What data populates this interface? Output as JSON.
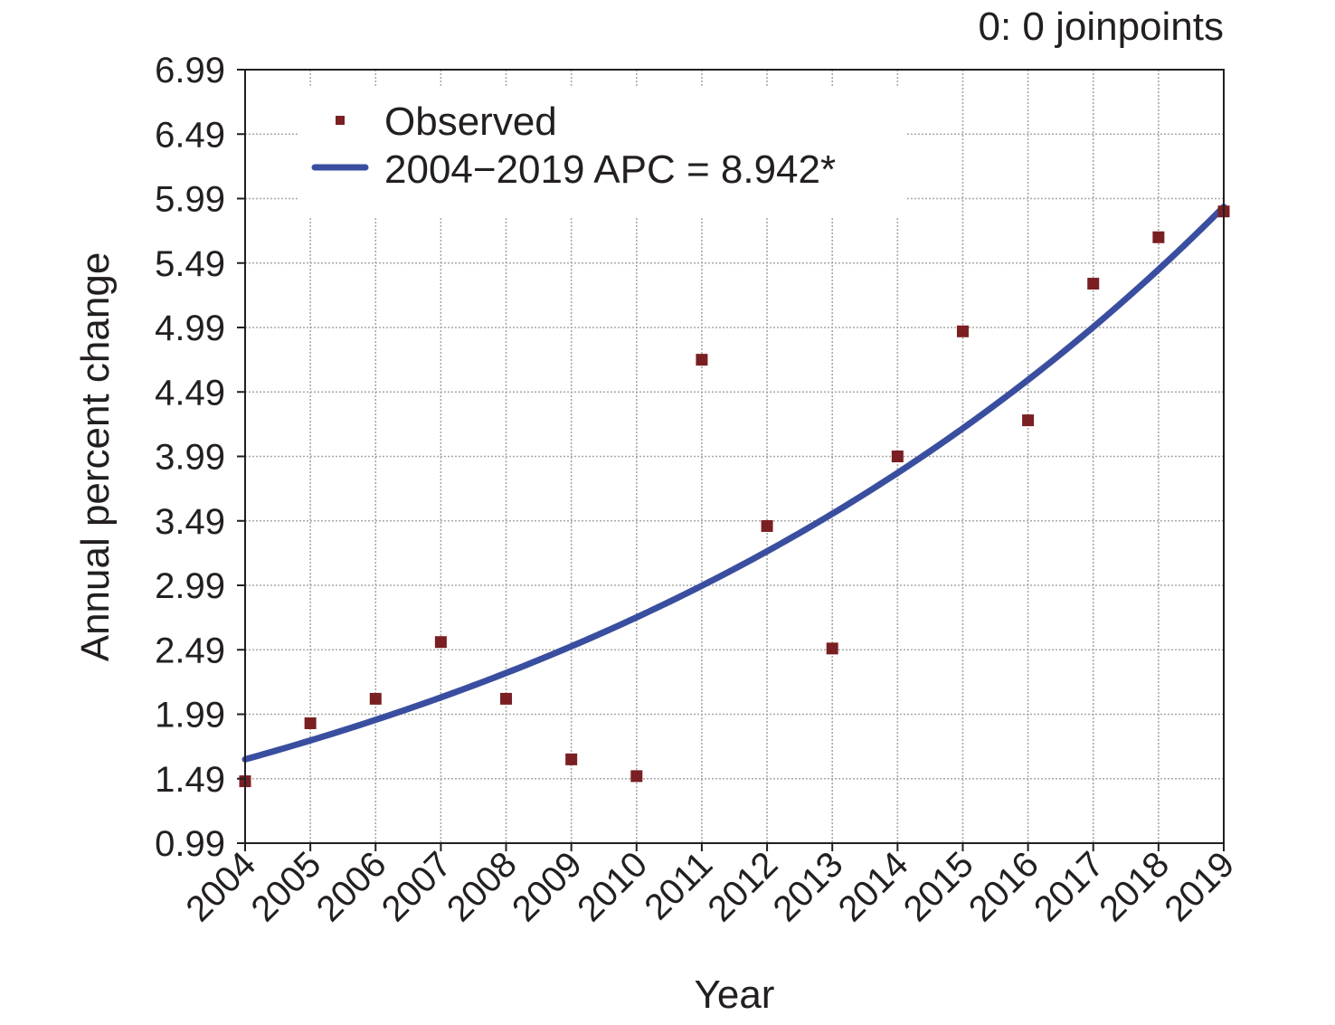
{
  "chart_data": {
    "type": "scatter",
    "subtitle": "0: 0 joinpoints",
    "xlabel": "Year",
    "ylabel": "Annual percent change",
    "x": [
      2004,
      2005,
      2006,
      2007,
      2008,
      2009,
      2010,
      2011,
      2012,
      2013,
      2014,
      2015,
      2016,
      2017,
      2018,
      2019
    ],
    "xlim": [
      2004,
      2019
    ],
    "ylim": [
      0.99,
      6.99
    ],
    "yticks": [
      "0.99",
      "1.49",
      "1.99",
      "2.49",
      "2.99",
      "3.49",
      "3.99",
      "4.49",
      "4.99",
      "5.49",
      "5.99",
      "6.49",
      "6.99"
    ],
    "xticks": [
      "2004",
      "2005",
      "2006",
      "2007",
      "2008",
      "2009",
      "2010",
      "2011",
      "2012",
      "2013",
      "2014",
      "2015",
      "2016",
      "2017",
      "2018",
      "2019"
    ],
    "grid": true,
    "legend_position": "top-left",
    "series": [
      {
        "name": "Observed",
        "kind": "points",
        "marker": "square",
        "color": "#7a1f22",
        "values": [
          1.47,
          1.92,
          2.11,
          2.55,
          2.11,
          1.64,
          1.51,
          4.74,
          3.45,
          2.5,
          3.99,
          4.96,
          4.27,
          5.33,
          5.69,
          5.89
        ]
      },
      {
        "name": "2004−2019 APC = 8.942*",
        "kind": "fit",
        "color": "#3a4ea0",
        "apc": 8.942,
        "start_value": 1.64,
        "values": [
          1.64,
          1.79,
          1.95,
          2.12,
          2.31,
          2.51,
          2.74,
          2.98,
          3.25,
          3.54,
          3.85,
          4.2,
          4.57,
          4.98,
          5.43,
          5.91
        ]
      }
    ]
  }
}
